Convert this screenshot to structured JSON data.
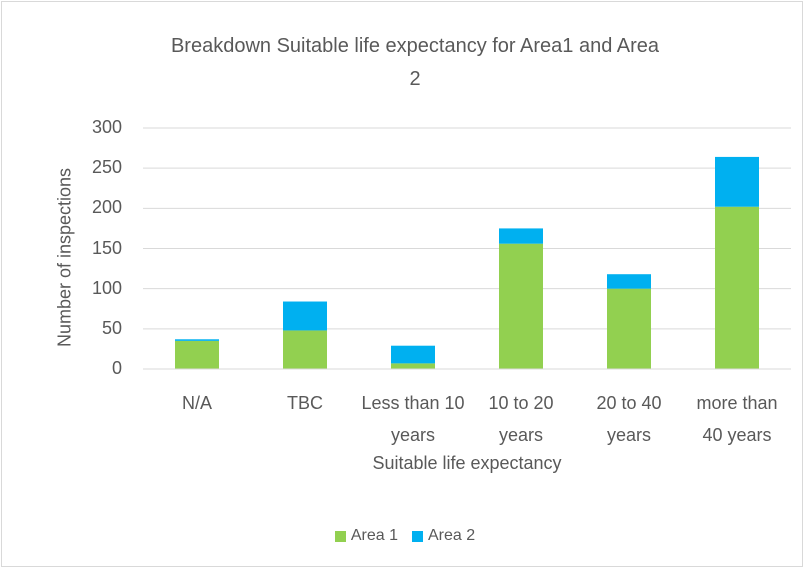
{
  "chart_data": {
    "type": "bar",
    "stacked": true,
    "title": "Breakdown Suitable life expectancy for Area1 and Area 2",
    "x_label": "Suitable life expectancy",
    "y_label": "Number of inspections",
    "categories": [
      "N/A",
      "TBC",
      "Less than 10 years",
      "10 to 20 years",
      "20 to 40 years",
      "more than 40 years"
    ],
    "series": [
      {
        "name": "Area 1",
        "color": "#92d050",
        "values": [
          35,
          48,
          7,
          156,
          100,
          202
        ]
      },
      {
        "name": "Area 2",
        "color": "#00b0f0",
        "values": [
          2,
          36,
          22,
          19,
          18,
          62
        ]
      }
    ],
    "ylim": [
      0,
      300
    ],
    "yticks": [
      0,
      50,
      100,
      150,
      200,
      250,
      300
    ],
    "grid": true,
    "legend": "bottom"
  }
}
